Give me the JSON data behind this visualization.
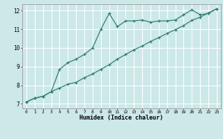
{
  "xlabel": "Humidex (Indice chaleur)",
  "background_color": "#cce8e8",
  "grid_color": "#ffffff",
  "line_color": "#2e7d6e",
  "xlim": [
    -0.5,
    23.5
  ],
  "ylim": [
    6.75,
    12.35
  ],
  "xticks": [
    0,
    1,
    2,
    3,
    4,
    5,
    6,
    7,
    8,
    9,
    10,
    11,
    12,
    13,
    14,
    15,
    16,
    17,
    18,
    19,
    20,
    21,
    22,
    23
  ],
  "yticks": [
    7,
    8,
    9,
    10,
    11,
    12
  ],
  "curve1_x": [
    0,
    1,
    2,
    3,
    4,
    5,
    6,
    7,
    8,
    9,
    10,
    11,
    12,
    13,
    14,
    15,
    16,
    17,
    18,
    19,
    20,
    21,
    22,
    23
  ],
  "curve1_y": [
    7.1,
    7.3,
    7.4,
    7.65,
    8.85,
    9.2,
    9.4,
    9.65,
    10.0,
    11.0,
    11.85,
    11.15,
    11.45,
    11.45,
    11.5,
    11.38,
    11.45,
    11.45,
    11.5,
    11.78,
    12.05,
    11.78,
    11.85,
    12.1
  ],
  "curve2_x": [
    0,
    1,
    2,
    3,
    4,
    5,
    6,
    7,
    8,
    9,
    10,
    11,
    12,
    13,
    14,
    15,
    16,
    17,
    18,
    19,
    20,
    21,
    22,
    23
  ],
  "curve2_y": [
    7.1,
    7.3,
    7.4,
    7.65,
    7.85,
    8.05,
    8.15,
    8.4,
    8.6,
    8.85,
    9.1,
    9.4,
    9.65,
    9.9,
    10.1,
    10.35,
    10.55,
    10.78,
    10.98,
    11.2,
    11.48,
    11.65,
    11.88,
    12.1
  ]
}
